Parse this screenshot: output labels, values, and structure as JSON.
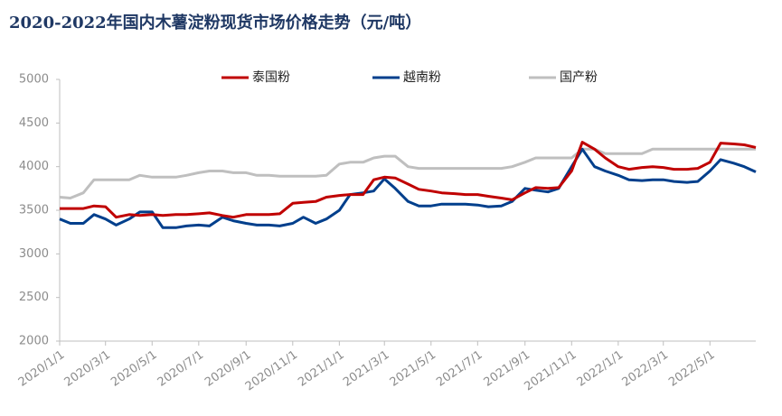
{
  "chart_data": {
    "type": "line",
    "title": "2020-2022年国内木薯淀粉现货市场价格走势（元/吨）",
    "x": [
      "2020/1/1",
      "2020/1/15",
      "2020/2/1",
      "2020/2/15",
      "2020/3/1",
      "2020/3/15",
      "2020/4/1",
      "2020/4/15",
      "2020/5/1",
      "2020/5/15",
      "2020/6/1",
      "2020/6/15",
      "2020/7/1",
      "2020/7/15",
      "2020/8/1",
      "2020/8/15",
      "2020/9/1",
      "2020/9/15",
      "2020/10/1",
      "2020/10/15",
      "2020/11/1",
      "2020/11/15",
      "2020/12/1",
      "2020/12/15",
      "2021/1/1",
      "2021/1/15",
      "2021/2/1",
      "2021/2/15",
      "2021/3/1",
      "2021/3/15",
      "2021/4/1",
      "2021/4/15",
      "2021/5/1",
      "2021/5/15",
      "2021/6/1",
      "2021/6/15",
      "2021/7/1",
      "2021/7/15",
      "2021/8/1",
      "2021/8/15",
      "2021/9/1",
      "2021/9/15",
      "2021/10/1",
      "2021/10/15",
      "2021/11/1",
      "2021/11/15",
      "2021/12/1",
      "2021/12/15",
      "2022/1/1",
      "2022/1/15",
      "2022/2/1",
      "2022/2/15",
      "2022/3/1",
      "2022/3/15",
      "2022/4/1",
      "2022/4/15",
      "2022/5/1",
      "2022/5/15",
      "2022/6/1",
      "2022/6/15",
      "2022/6/30"
    ],
    "series": [
      {
        "name": "泰国粉",
        "color": "#c00000",
        "values": [
          3520,
          3520,
          3520,
          3550,
          3540,
          3420,
          3450,
          3440,
          3450,
          3440,
          3450,
          3450,
          3460,
          3470,
          3440,
          3420,
          3450,
          3450,
          3450,
          3460,
          3580,
          3590,
          3600,
          3650,
          3670,
          3680,
          3680,
          3850,
          3880,
          3870,
          3800,
          3740,
          3720,
          3700,
          3690,
          3680,
          3680,
          3660,
          3640,
          3620,
          3700,
          3760,
          3750,
          3760,
          3950,
          4280,
          4200,
          4100,
          4000,
          3970,
          3990,
          4000,
          3990,
          3970,
          3970,
          3980,
          4050,
          4270,
          4260,
          4250,
          4220
        ]
      },
      {
        "name": "越南粉",
        "color": "#003f8c",
        "values": [
          3400,
          3350,
          3350,
          3450,
          3400,
          3330,
          3400,
          3480,
          3480,
          3300,
          3300,
          3320,
          3330,
          3320,
          3420,
          3380,
          3350,
          3330,
          3330,
          3320,
          3350,
          3420,
          3350,
          3400,
          3500,
          3680,
          3700,
          3720,
          3860,
          3750,
          3600,
          3550,
          3550,
          3570,
          3570,
          3570,
          3560,
          3540,
          3550,
          3600,
          3750,
          3730,
          3710,
          3750,
          4000,
          4200,
          4000,
          3950,
          3900,
          3850,
          3840,
          3850,
          3850,
          3830,
          3820,
          3830,
          3950,
          4080,
          4040,
          4000,
          3940
        ]
      },
      {
        "name": "国产粉",
        "color": "#bfbfbf",
        "values": [
          3650,
          3640,
          3700,
          3850,
          3850,
          3850,
          3850,
          3900,
          3880,
          3880,
          3880,
          3900,
          3930,
          3950,
          3950,
          3930,
          3930,
          3900,
          3900,
          3890,
          3890,
          3890,
          3890,
          3900,
          4030,
          4050,
          4050,
          4100,
          4120,
          4120,
          4000,
          3980,
          3980,
          3980,
          3980,
          3980,
          3980,
          3980,
          3980,
          4000,
          4050,
          4100,
          4100,
          4100,
          4100,
          4200,
          4200,
          4150,
          4150,
          4150,
          4150,
          4200,
          4200,
          4200,
          4200,
          4200,
          4200,
          4200,
          4200,
          4200,
          4200
        ]
      }
    ],
    "xlim": [
      "2020/1/1",
      "2022/6/30"
    ],
    "xticks": [
      "2020/1/1",
      "2020/3/1",
      "2020/5/1",
      "2020/7/1",
      "2020/9/1",
      "2020/11/1",
      "2021/1/1",
      "2021/3/1",
      "2021/5/1",
      "2021/7/1",
      "2021/9/1",
      "2021/11/1",
      "2022/1/1",
      "2022/3/1",
      "2022/5/1"
    ],
    "ylim": [
      2000,
      5000
    ],
    "yticks": [
      2000,
      2500,
      3000,
      3500,
      4000,
      4500,
      5000
    ],
    "legend": "top",
    "grid": false
  }
}
